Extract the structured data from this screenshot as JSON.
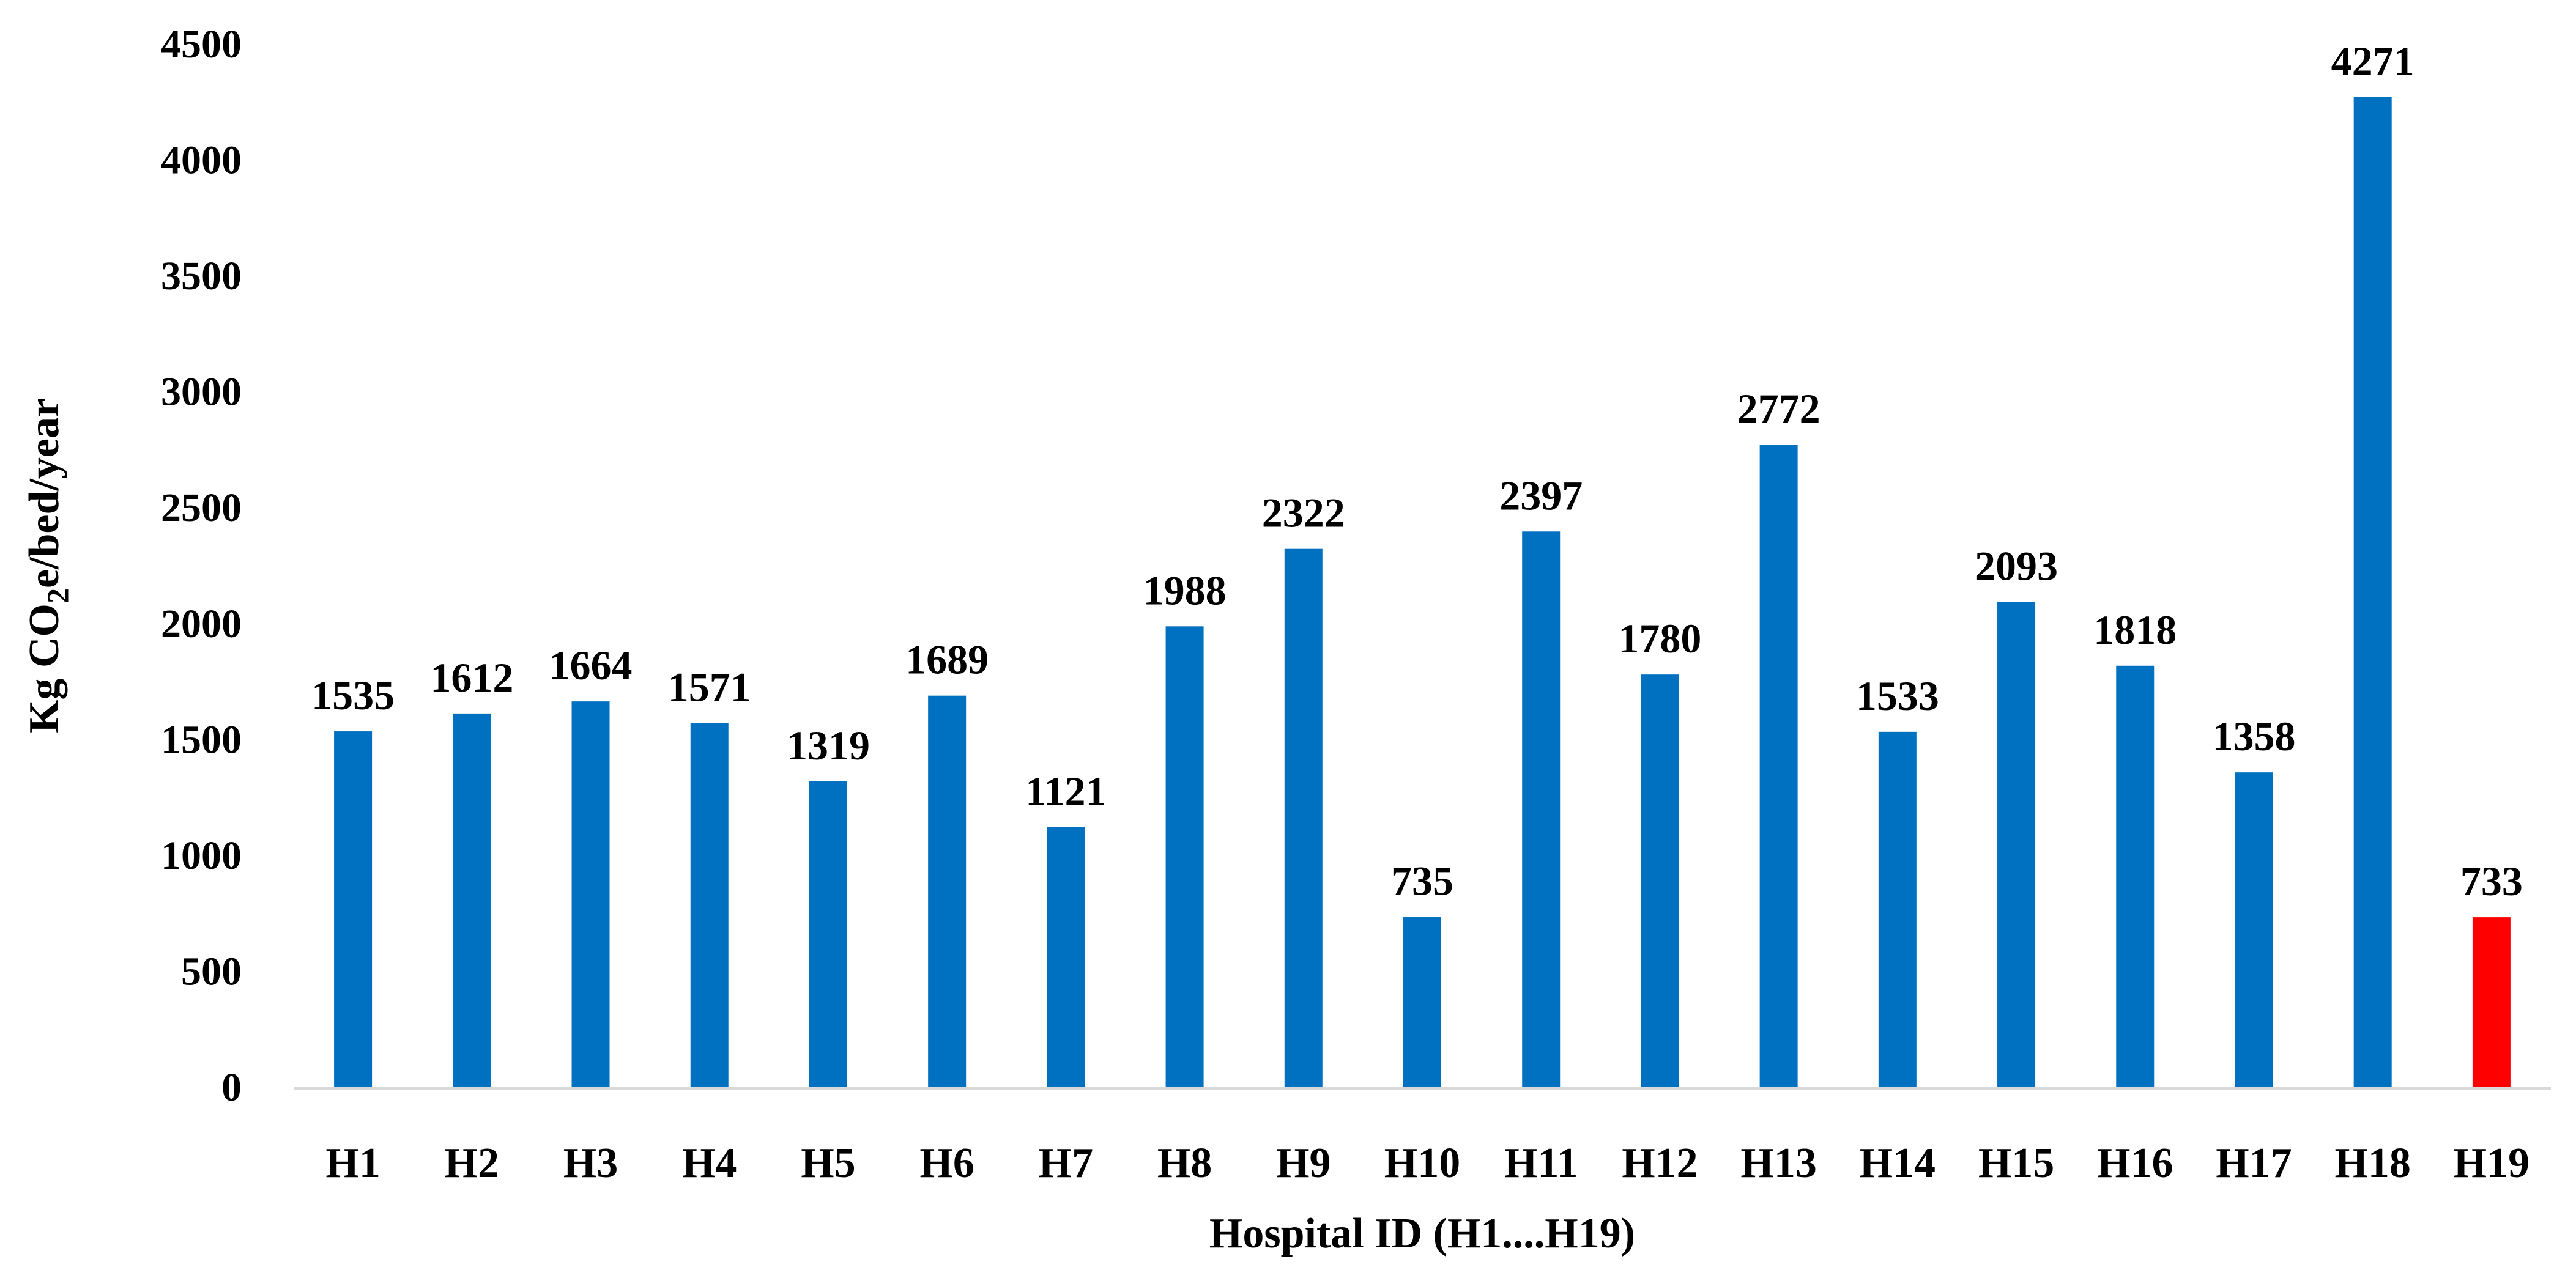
{
  "chart_data": {
    "type": "bar",
    "title": "",
    "xlabel": "Hospital ID (H1....H19)",
    "ylabel": {
      "prefix": "Kg CO",
      "subscript": "2",
      "suffix": "e/bed/year"
    },
    "categories": [
      "H1",
      "H2",
      "H3",
      "H4",
      "H5",
      "H6",
      "H7",
      "H8",
      "H9",
      "H10",
      "H11",
      "H12",
      "H13",
      "H14",
      "H15",
      "H16",
      "H17",
      "H18",
      "H19"
    ],
    "values": [
      1535,
      1612,
      1664,
      1571,
      1319,
      1689,
      1121,
      1988,
      2322,
      735,
      2397,
      1780,
      2772,
      1533,
      2093,
      1818,
      1358,
      4271,
      733
    ],
    "data_labels": [
      "1535",
      "1612",
      "1664",
      "1571",
      "1319",
      "1689",
      "1121",
      "1988",
      "2322",
      "735",
      "2397",
      "1780",
      "2772",
      "1533",
      "2093",
      "1818",
      "1358",
      "4271",
      "733"
    ],
    "bar_colors": [
      "#0070C0",
      "#0070C0",
      "#0070C0",
      "#0070C0",
      "#0070C0",
      "#0070C0",
      "#0070C0",
      "#0070C0",
      "#0070C0",
      "#0070C0",
      "#0070C0",
      "#0070C0",
      "#0070C0",
      "#0070C0",
      "#0070C0",
      "#0070C0",
      "#0070C0",
      "#0070C0",
      "#FF0000"
    ],
    "ylim": [
      0,
      4500
    ],
    "yticks": [
      0,
      500,
      1000,
      1500,
      2000,
      2500,
      3000,
      3500,
      4000,
      4500
    ],
    "ytick_labels": [
      "0",
      "500",
      "1000",
      "1500",
      "2000",
      "2500",
      "3000",
      "3500",
      "4000",
      "4500"
    ],
    "grid": false,
    "legend": "none",
    "axis_color": "#D9D9D9"
  }
}
